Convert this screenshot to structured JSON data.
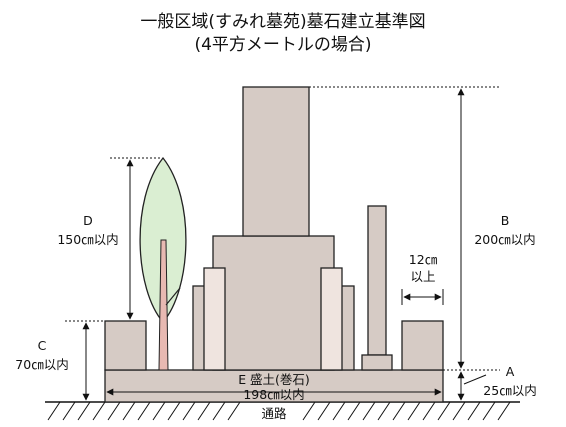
{
  "title": {
    "line1": "一般区域(すみれ墓苑)墓石建立基準図",
    "line2": "(4平方メートルの場合)"
  },
  "labels": {
    "d_letter": "D",
    "d_value": "150㎝以内",
    "b_letter": "B",
    "b_value": "200㎝以内",
    "gap_value": "12㎝",
    "gap_suffix": "以上",
    "c_letter": "C",
    "c_value": "70㎝以内",
    "a_letter": "A",
    "a_value": "25㎝以内",
    "mound": "E 盛土(巻石)",
    "width": "198㎝以内",
    "path": "通路"
  },
  "colors": {
    "stone": "#d6cbc5",
    "tree_leaf": "#daeed2",
    "trunk": "#e8b9b2",
    "outline": "#222222"
  }
}
